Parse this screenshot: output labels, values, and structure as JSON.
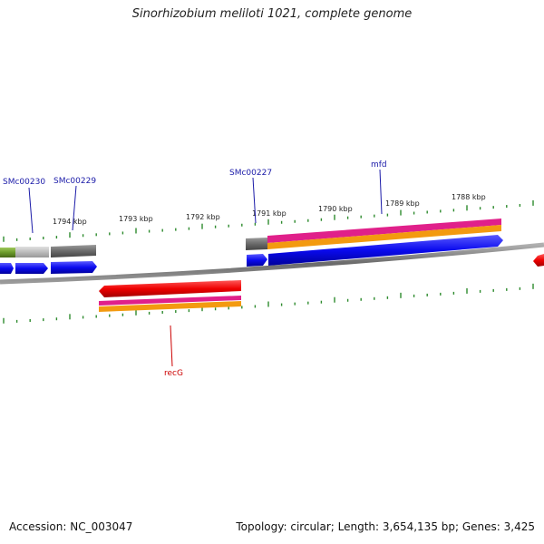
{
  "title": "Sinorhizobium meliloti 1021, complete genome",
  "footer": {
    "accession": "Accession: NC_003047",
    "summary": "Topology: circular; Length: 3,654,135 bp; Genes: 3,425"
  },
  "ticks": [
    "1794 kbp",
    "1793 kbp",
    "1792 kbp",
    "1791 kbp",
    "1790 kbp",
    "1789 kbp",
    "1788 kbp"
  ],
  "gene_labels": [
    {
      "text": "SMc00230",
      "color": "#1a1aa8"
    },
    {
      "text": "SMc00229",
      "color": "#1a1aa8"
    },
    {
      "text": "SMc00227",
      "color": "#1a1aa8"
    },
    {
      "text": "mfd",
      "color": "#1a1aa8"
    },
    {
      "text": "recG",
      "color": "#cc0000"
    }
  ],
  "colors": {
    "backbone": "#7a7a7a",
    "tick": "#2e8b2e",
    "gene_blue": "#0a0aee",
    "gene_red": "#ee0000",
    "pink": "#e0208a",
    "orange": "#f39a10",
    "gray": "#6a6a6a",
    "green": "#6b9a2a",
    "lightgray": "#bcbcbc"
  }
}
